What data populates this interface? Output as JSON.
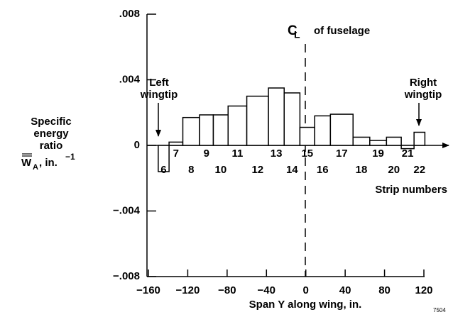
{
  "chart_data": {
    "type": "histogram",
    "x_label": "Span Y along wing, in.",
    "y_label": [
      "Specific",
      "energy",
      "ratio"
    ],
    "y_symbol": {
      "symbol": "W",
      "subscript": "A",
      "unit": ", in.",
      "exponent": "−1"
    },
    "annotations": {
      "centerline_c": "C",
      "centerline_l": "L",
      "centerline": "of fuselage",
      "left_1": "Left",
      "left_2": "wingtip",
      "right_1": "Right",
      "right_2": "wingtip",
      "strips": "Strip numbers",
      "figure_number": "7504"
    },
    "categories": [
      6,
      7,
      8,
      9,
      10,
      11,
      12,
      13,
      14,
      15,
      16,
      17,
      18,
      19,
      20,
      21,
      22
    ],
    "bins": [
      -150,
      -139,
      -125,
      -108,
      -94,
      -79,
      -60,
      -38,
      -22,
      -6,
      9,
      25,
      48,
      65,
      82,
      97,
      110,
      121
    ],
    "values": [
      -0.0016,
      0.0002,
      0.0017,
      0.00186,
      0.00186,
      0.0024,
      0.003,
      0.0035,
      0.0032,
      0.0011,
      0.0018,
      0.0019,
      0.0005,
      0.0003,
      0.0005,
      -0.0002,
      0.0008
    ],
    "color": "#ffffff",
    "xlim": [
      -160,
      120
    ],
    "xticks": [
      {
        "value": -160,
        "label": "−160"
      },
      {
        "value": -120,
        "label": "−120"
      },
      {
        "value": -80,
        "label": "−80"
      },
      {
        "value": -40,
        "label": "−40"
      },
      0,
      40,
      80,
      120
    ],
    "ylim": [
      -0.008,
      0.008
    ],
    "yticks": [
      {
        "value": -0.008,
        "label": "−.008"
      },
      {
        "value": -0.004,
        "label": "−.004"
      },
      0,
      {
        "value": 0.004,
        "label": ".004"
      },
      {
        "value": 0.008,
        "label": ".008"
      }
    ],
    "grid": false
  }
}
